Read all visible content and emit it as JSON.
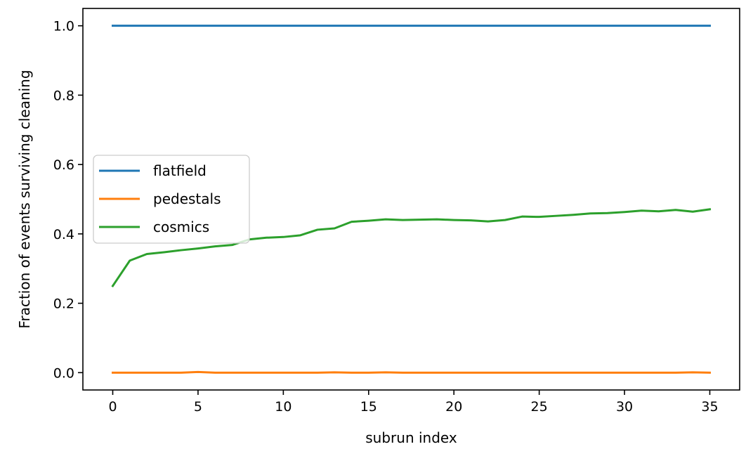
{
  "chart_data": {
    "type": "line",
    "xlabel": "subrun index",
    "ylabel": "Fraction of events surviving cleaning",
    "xlim": [
      -1.75,
      36.75
    ],
    "ylim": [
      -0.05,
      1.05
    ],
    "xticks": [
      0,
      5,
      10,
      15,
      20,
      25,
      30,
      35
    ],
    "xtick_labels": [
      "0",
      "5",
      "10",
      "15",
      "20",
      "25",
      "30",
      "35"
    ],
    "yticks": [
      0.0,
      0.2,
      0.4,
      0.6,
      0.8,
      1.0
    ],
    "ytick_labels": [
      "0.0",
      "0.2",
      "0.4",
      "0.6",
      "0.8",
      "1.0"
    ],
    "grid": false,
    "legend_position": "center-left",
    "x": [
      0,
      1,
      2,
      3,
      4,
      5,
      6,
      7,
      8,
      9,
      10,
      11,
      12,
      13,
      14,
      15,
      16,
      17,
      18,
      19,
      20,
      21,
      22,
      23,
      24,
      25,
      26,
      27,
      28,
      29,
      30,
      31,
      32,
      33,
      34,
      35
    ],
    "series": [
      {
        "name": "flatfield",
        "color": "#1f77b4",
        "values": [
          1.0,
          1.0,
          1.0,
          1.0,
          1.0,
          1.0,
          1.0,
          1.0,
          1.0,
          1.0,
          1.0,
          1.0,
          1.0,
          1.0,
          1.0,
          1.0,
          1.0,
          1.0,
          1.0,
          1.0,
          1.0,
          1.0,
          1.0,
          1.0,
          1.0,
          1.0,
          1.0,
          1.0,
          1.0,
          1.0,
          1.0,
          1.0,
          1.0,
          1.0,
          1.0,
          1.0
        ]
      },
      {
        "name": "pedestals",
        "color": "#ff7f0e",
        "values": [
          0.0,
          0.0,
          0.0,
          0.0,
          0.0,
          0.002,
          0.0,
          0.0,
          0.0,
          0.0,
          0.0,
          0.0,
          0.0,
          0.001,
          0.0,
          0.0,
          0.001,
          0.0,
          0.0,
          0.0,
          0.0,
          0.0,
          0.0,
          0.0,
          0.0,
          0.0,
          0.0,
          0.0,
          0.0,
          0.0,
          0.0,
          0.0,
          0.0,
          0.0,
          0.001,
          0.0
        ]
      },
      {
        "name": "cosmics",
        "color": "#2ca02c",
        "values": [
          0.25,
          0.323,
          0.342,
          0.347,
          0.353,
          0.358,
          0.364,
          0.368,
          0.384,
          0.389,
          0.391,
          0.396,
          0.412,
          0.416,
          0.435,
          0.438,
          0.442,
          0.44,
          0.441,
          0.442,
          0.44,
          0.439,
          0.436,
          0.44,
          0.45,
          0.449,
          0.452,
          0.455,
          0.459,
          0.46,
          0.463,
          0.467,
          0.465,
          0.469,
          0.464,
          0.471
        ]
      }
    ]
  }
}
